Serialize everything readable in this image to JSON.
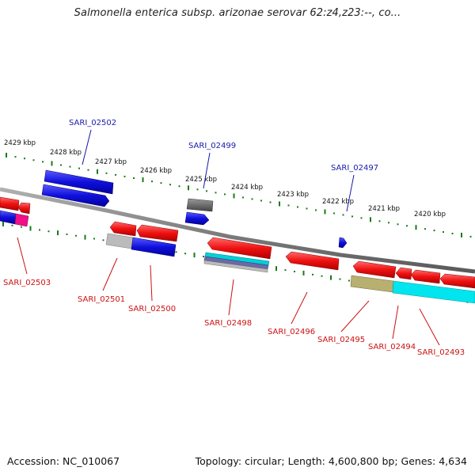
{
  "title": "Salmonella enterica subsp. arizonae serovar 62:z4,z23:--, co...",
  "footer": {
    "accession": "Accession: NC_010067",
    "summary": "Topology: circular; Length: 4,600,800 bp; Genes: 4,634"
  },
  "ticks": [
    "2429 kbp",
    "2428 kbp",
    "2427 kbp",
    "2426 kbp",
    "2425 kbp",
    "2424 kbp",
    "2423 kbp",
    "2422 kbp",
    "2421 kbp",
    "2420 kbp"
  ],
  "gene_labels": {
    "forward": [
      "SARI_02502",
      "SARI_02499",
      "SARI_02497"
    ],
    "reverse": [
      "SARI_02503",
      "SARI_02501",
      "SARI_02500",
      "SARI_02498",
      "SARI_02496",
      "SARI_02495",
      "SARI_02494",
      "SARI_02493"
    ]
  },
  "colors": {
    "forward_label": "#1a1aaa",
    "reverse_label": "#cc1111",
    "forward_gene": "#1010dd",
    "reverse_gene": "#ee1111",
    "tick_marks": "#1a7a1a",
    "backbone": "#808080",
    "cyan_feature": "#00e5ee",
    "olive_feature": "#b8b070",
    "gray_feature": "#bbbbbb",
    "magenta_feature": "#ee1188",
    "dark_gray_feature": "#666666"
  }
}
